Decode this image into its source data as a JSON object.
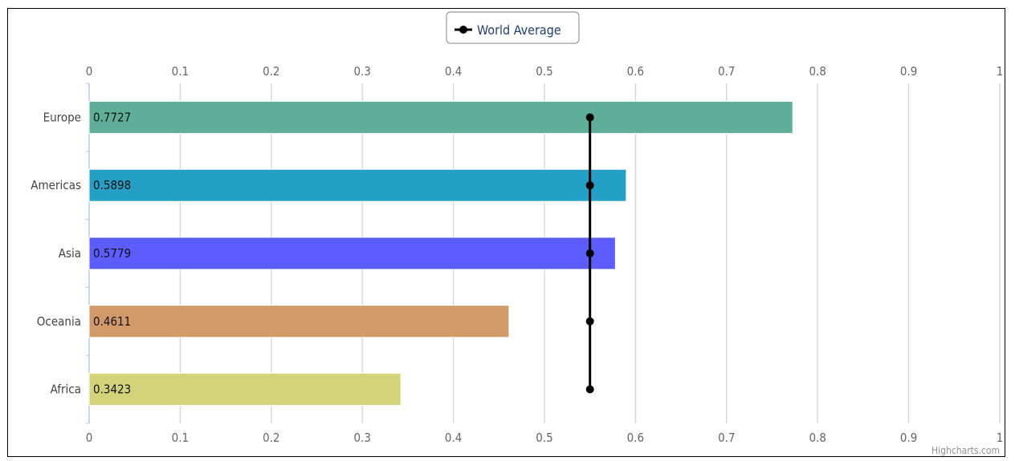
{
  "chart_data": {
    "type": "bar",
    "orientation": "horizontal",
    "categories": [
      "Europe",
      "Americas",
      "Asia",
      "Oceania",
      "Africa"
    ],
    "values": [
      0.7727,
      0.5898,
      0.5779,
      0.4611,
      0.3423
    ],
    "bar_colors": [
      "#5fae9a",
      "#24a0c6",
      "#5c5cff",
      "#d29a68",
      "#d3d37a"
    ],
    "data_labels": [
      "0.7727",
      "0.5898",
      "0.5779",
      "0.4611",
      "0.3423"
    ],
    "xlim": [
      0,
      1
    ],
    "xticks": [
      0,
      0.1,
      0.2,
      0.3,
      0.4,
      0.5,
      0.6,
      0.7,
      0.8,
      0.9,
      1
    ],
    "xtick_labels": [
      "0",
      "0.1",
      "0.2",
      "0.3",
      "0.4",
      "0.5",
      "0.6",
      "0.7",
      "0.8",
      "0.9",
      "1"
    ],
    "series": [
      {
        "name": "World Average",
        "type": "line",
        "color": "#000000",
        "values": [
          0.55,
          0.55,
          0.55,
          0.55,
          0.55
        ]
      }
    ],
    "grid": true,
    "axis_labels_top_and_bottom": true,
    "legend": {
      "position": "top-center",
      "entries": [
        "World Average"
      ]
    },
    "credit": "Highcharts.com"
  }
}
